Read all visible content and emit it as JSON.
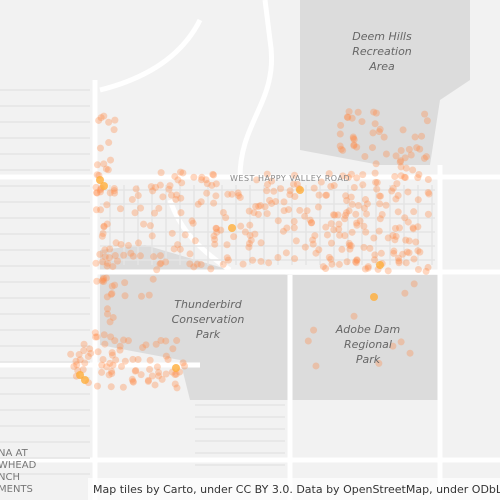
{
  "labels": {
    "deem_hills": [
      "Deem Hills",
      "Recreation",
      "Area"
    ],
    "road": "WEST HAPPY VALLEY ROAD",
    "thunderbird": [
      "Thunderbird",
      "Conservation",
      "Park"
    ],
    "adobe": [
      "Adobe Dam",
      "Regional",
      "Park"
    ],
    "edge": [
      "NA AT",
      "WHEAD",
      "NCH",
      "MENTS"
    ]
  },
  "attribution": "Map tiles by Carto, under CC BY 3.0. Data by OpenStreetMap, under ODbL."
}
